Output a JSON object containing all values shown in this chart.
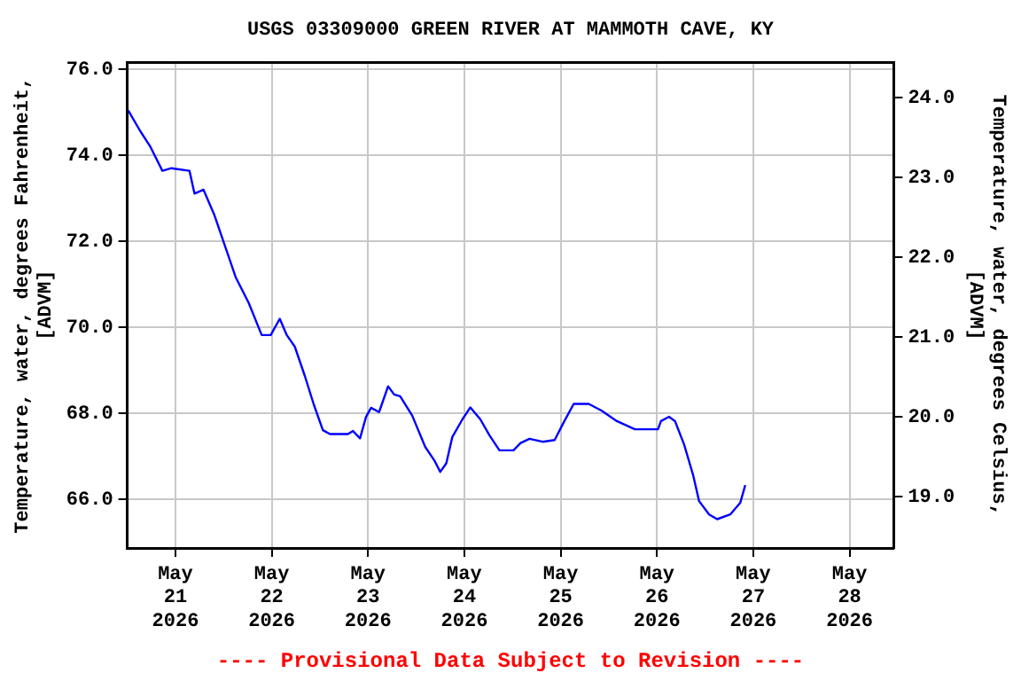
{
  "chart_data": {
    "type": "line",
    "title": "USGS 03309000 GREEN RIVER AT MAMMOTH CAVE, KY",
    "ylabel": "Temperature, water, degrees Fahrenheit,\n[ADVM]",
    "y2label": "Temperature, water, degrees Celsius,\n[ADVM]",
    "annotations": [
      "---- Provisional Data Subject to Revision ----"
    ],
    "x": [
      "2026-05-20T12:15",
      "2026-05-20T15:15",
      "2026-05-20T17:45",
      "2026-05-20T20:45",
      "2026-05-20T23:00",
      "2026-05-21T03:30",
      "2026-05-21T04:45",
      "2026-05-21T07:00",
      "2026-05-21T09:45",
      "2026-05-21T12:15",
      "2026-05-21T15:00",
      "2026-05-21T18:15",
      "2026-05-21T21:30",
      "2026-05-21T23:45",
      "2026-05-22T02:00",
      "2026-05-22T03:45",
      "2026-05-22T05:45",
      "2026-05-22T08:15",
      "2026-05-22T10:30",
      "2026-05-22T12:45",
      "2026-05-22T14:30",
      "2026-05-22T19:00",
      "2026-05-22T20:15",
      "2026-05-22T22:00",
      "2026-05-22T23:30",
      "2026-05-23T00:45",
      "2026-05-23T02:45",
      "2026-05-23T05:00",
      "2026-05-23T06:30",
      "2026-05-23T08:00",
      "2026-05-23T11:00",
      "2026-05-23T14:15",
      "2026-05-23T16:30",
      "2026-05-23T18:00",
      "2026-05-23T19:30",
      "2026-05-23T21:00",
      "2026-05-23T23:30",
      "2026-05-24T01:30",
      "2026-05-24T04:00",
      "2026-05-24T06:15",
      "2026-05-24T08:45",
      "2026-05-24T12:15",
      "2026-05-24T14:00",
      "2026-05-24T16:15",
      "2026-05-24T19:30",
      "2026-05-24T22:30",
      "2026-05-25T00:45",
      "2026-05-25T03:15",
      "2026-05-25T07:00",
      "2026-05-25T10:15",
      "2026-05-25T14:00",
      "2026-05-25T18:30",
      "2026-05-26T00:15",
      "2026-05-26T01:00",
      "2026-05-26T03:00",
      "2026-05-26T04:30",
      "2026-05-26T06:45",
      "2026-05-26T09:00",
      "2026-05-26T10:30",
      "2026-05-26T13:00",
      "2026-05-26T15:00",
      "2026-05-26T18:15",
      "2026-05-26T20:45",
      "2026-05-26T22:00"
    ],
    "series": [
      {
        "color": "#0000ff",
        "values": [
          75.04,
          74.56,
          74.2,
          73.64,
          73.7,
          73.64,
          73.11,
          73.2,
          72.6,
          71.92,
          71.17,
          70.57,
          69.82,
          69.82,
          70.2,
          69.82,
          69.55,
          68.87,
          68.2,
          67.61,
          67.52,
          67.52,
          67.59,
          67.42,
          67.92,
          68.13,
          68.03,
          68.63,
          68.44,
          68.4,
          67.95,
          67.22,
          66.91,
          66.64,
          66.84,
          67.45,
          67.86,
          68.14,
          67.86,
          67.49,
          67.14,
          67.14,
          67.31,
          67.41,
          67.34,
          67.38,
          67.79,
          68.22,
          68.22,
          68.06,
          67.82,
          67.63,
          67.63,
          67.82,
          67.92,
          67.82,
          67.28,
          66.57,
          65.96,
          65.65,
          65.54,
          65.65,
          65.92,
          66.33
        ]
      }
    ],
    "xlim": [
      "2026-05-20T12:00",
      "2026-05-28T11:00"
    ],
    "xticks": [
      {
        "value": "2026-05-21",
        "label": "May 21 2026"
      },
      {
        "value": "2026-05-22",
        "label": "May 22 2026"
      },
      {
        "value": "2026-05-23",
        "label": "May 23 2026"
      },
      {
        "value": "2026-05-24",
        "label": "May 24 2026"
      },
      {
        "value": "2026-05-25",
        "label": "May 25 2026"
      },
      {
        "value": "2026-05-26",
        "label": "May 26 2026"
      },
      {
        "value": "2026-05-27",
        "label": "May 27 2026"
      },
      {
        "value": "2026-05-28",
        "label": "May 28 2026"
      }
    ],
    "ylim": [
      64.87,
      76.16
    ],
    "yticks": [
      {
        "value": 66,
        "label": "66.0"
      },
      {
        "value": 68,
        "label": "68.0"
      },
      {
        "value": 70,
        "label": "70.0"
      },
      {
        "value": 72,
        "label": "72.0"
      },
      {
        "value": 74,
        "label": "74.0"
      },
      {
        "value": 76,
        "label": "76.0"
      }
    ],
    "y2lim": [
      18.36,
      24.44
    ],
    "y2ticks": [
      {
        "value": 19,
        "label": "19.0"
      },
      {
        "value": 20,
        "label": "20.0"
      },
      {
        "value": 21,
        "label": "21.0"
      },
      {
        "value": 22,
        "label": "22.0"
      },
      {
        "value": 23,
        "label": "23.0"
      },
      {
        "value": 24,
        "label": "24.0"
      }
    ],
    "grid": true,
    "marker": "none",
    "line_style": "solid"
  }
}
